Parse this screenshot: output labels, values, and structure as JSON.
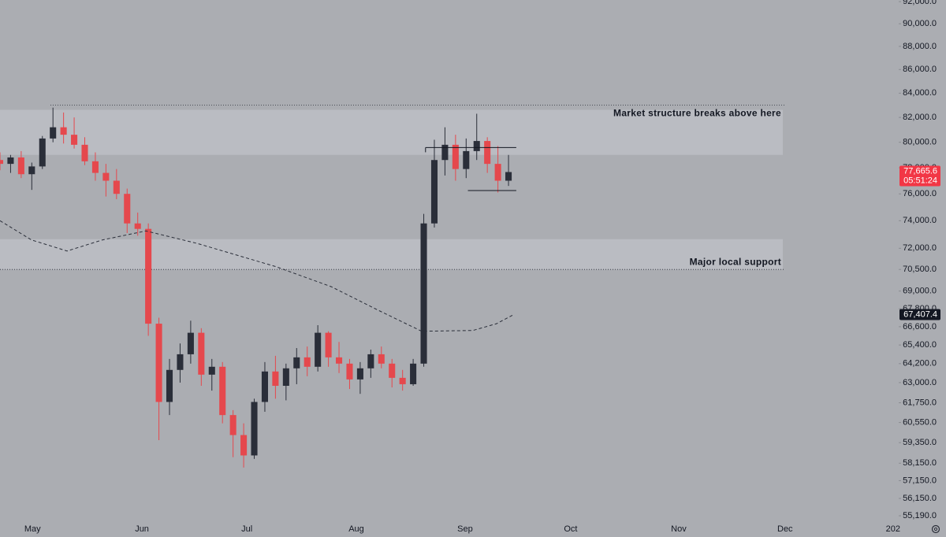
{
  "chart_data": {
    "type": "candlestick",
    "log_scale": true,
    "up_color": "#2a2e39",
    "down_color": "#e5484d",
    "xlim": [
      0,
      253.6
    ],
    "ylim": [
      54890,
      92150
    ],
    "xticks": [
      {
        "value": 9.2,
        "label": "May"
      },
      {
        "value": 40.2,
        "label": "Jun"
      },
      {
        "value": 69.9,
        "label": "Jul"
      },
      {
        "value": 100.9,
        "label": "Aug"
      },
      {
        "value": 131.7,
        "label": "Sep"
      },
      {
        "value": 161.6,
        "label": "Oct"
      },
      {
        "value": 192.2,
        "label": "Nov"
      },
      {
        "value": 222.3,
        "label": "Dec"
      },
      {
        "value": 252.9,
        "label": "202"
      }
    ],
    "yticks": [
      {
        "value": 92000,
        "label": "92,000.0"
      },
      {
        "value": 90000,
        "label": "90,000.0"
      },
      {
        "value": 88000,
        "label": "88,000.0"
      },
      {
        "value": 86000,
        "label": "86,000.0"
      },
      {
        "value": 84000,
        "label": "84,000.0"
      },
      {
        "value": 82000,
        "label": "82,000.0"
      },
      {
        "value": 80000,
        "label": "80,000.0"
      },
      {
        "value": 78000,
        "label": "78,000.0"
      },
      {
        "value": 76000,
        "label": "76,000.0"
      },
      {
        "value": 74000,
        "label": "74,000.0"
      },
      {
        "value": 72000,
        "label": "72,000.0"
      },
      {
        "value": 70500,
        "label": "70,500.0"
      },
      {
        "value": 69000,
        "label": "69,000.0"
      },
      {
        "value": 67800,
        "label": "67,800.0"
      },
      {
        "value": 66600,
        "label": "66,600.0"
      },
      {
        "value": 65400,
        "label": "65,400.0"
      },
      {
        "value": 64200,
        "label": "64,200.0"
      },
      {
        "value": 63000,
        "label": "63,000.0"
      },
      {
        "value": 61750,
        "label": "61,750.0"
      },
      {
        "value": 60550,
        "label": "60,550.0"
      },
      {
        "value": 59350,
        "label": "59,350.0"
      },
      {
        "value": 58150,
        "label": "58,150.0"
      },
      {
        "value": 57150,
        "label": "57,150.0"
      },
      {
        "value": 56150,
        "label": "56,150.0"
      },
      {
        "value": 55190,
        "label": "55,190.0"
      }
    ],
    "x": [
      0,
      3,
      6,
      9,
      12,
      15,
      18,
      21,
      24,
      27,
      30,
      33,
      36,
      39,
      42,
      45,
      48,
      51,
      54,
      57,
      60,
      63,
      66,
      69,
      72,
      75,
      78,
      81,
      84,
      87,
      90,
      93,
      96,
      99,
      102,
      105,
      108,
      111,
      114,
      117,
      120,
      123,
      126,
      129,
      132,
      135,
      138,
      141,
      144
    ],
    "open": [
      78600,
      78300,
      78800,
      77500,
      78100,
      80300,
      81200,
      80600,
      79800,
      78500,
      77600,
      77000,
      76000,
      73800,
      73400,
      66800,
      61800,
      63800,
      64800,
      66200,
      63500,
      64000,
      61000,
      59800,
      58600,
      61800,
      63700,
      62800,
      63900,
      64600,
      64000,
      66200,
      64600,
      64200,
      63200,
      63900,
      64800,
      64200,
      63300,
      62900,
      64200,
      73800,
      78600,
      79800,
      77900,
      79300,
      80100,
      78300,
      77000
    ],
    "high": [
      79200,
      79000,
      79300,
      78400,
      80500,
      82800,
      82400,
      82000,
      80400,
      79200,
      78300,
      77900,
      76400,
      74600,
      73800,
      67200,
      64500,
      65500,
      67000,
      66500,
      64500,
      64300,
      61300,
      60500,
      62000,
      64300,
      64700,
      64200,
      65200,
      65300,
      66700,
      66300,
      65600,
      64500,
      64300,
      65100,
      65300,
      64500,
      63800,
      64500,
      74500,
      80200,
      81200,
      80600,
      80300,
      82300,
      80400,
      79700,
      79000
    ],
    "low": [
      77800,
      77600,
      77200,
      76300,
      77900,
      80000,
      79900,
      79500,
      78200,
      77000,
      75800,
      75600,
      73100,
      72900,
      66000,
      59500,
      61000,
      63000,
      64200,
      62800,
      62500,
      60500,
      58500,
      57900,
      58400,
      61200,
      62000,
      61900,
      62900,
      63400,
      63700,
      64000,
      63600,
      62600,
      62300,
      63300,
      63900,
      62700,
      62500,
      62800,
      64000,
      73500,
      77400,
      77000,
      77200,
      78600,
      77600,
      76100,
      76600
    ],
    "close": [
      78300,
      78800,
      77500,
      78100,
      80300,
      81200,
      80600,
      79800,
      78500,
      77600,
      77000,
      76000,
      73800,
      73400,
      66800,
      61800,
      63800,
      64800,
      66200,
      63500,
      64000,
      61000,
      59800,
      58600,
      61800,
      63700,
      62800,
      63900,
      64600,
      64000,
      66200,
      64600,
      64200,
      63200,
      63900,
      64800,
      64200,
      63300,
      62900,
      64200,
      73800,
      78600,
      79800,
      77900,
      79300,
      80100,
      78300,
      77000,
      77665.6
    ],
    "moving_average": {
      "color": "#2a2e39",
      "x": [
        0,
        8.9,
        19,
        29,
        41.3,
        55.8,
        78.1,
        93.8,
        107.1,
        119.4,
        133.9,
        140.6,
        145.5
      ],
      "values": [
        74000,
        72600,
        71800,
        72600,
        73250,
        72350,
        70700,
        69300,
        67700,
        66300,
        66350,
        66800,
        67407.4
      ]
    },
    "zones": [
      {
        "range": [
          79000,
          82620
        ],
        "label": "Market structure breaks above here"
      },
      {
        "range": [
          70500,
          72650
        ],
        "label": "Major local support"
      }
    ],
    "levels": [
      83000,
      70500
    ],
    "range_box": {
      "x": [
        120.5,
        146.2
      ],
      "range": [
        76250,
        79580
      ]
    },
    "price_labels": [
      {
        "value": 77665.6,
        "label": "77,665.6",
        "countdown": "05:51:24",
        "color": "#f23645"
      },
      {
        "value": 67407.4,
        "label": "67,407.4",
        "color": "#131722"
      }
    ]
  }
}
